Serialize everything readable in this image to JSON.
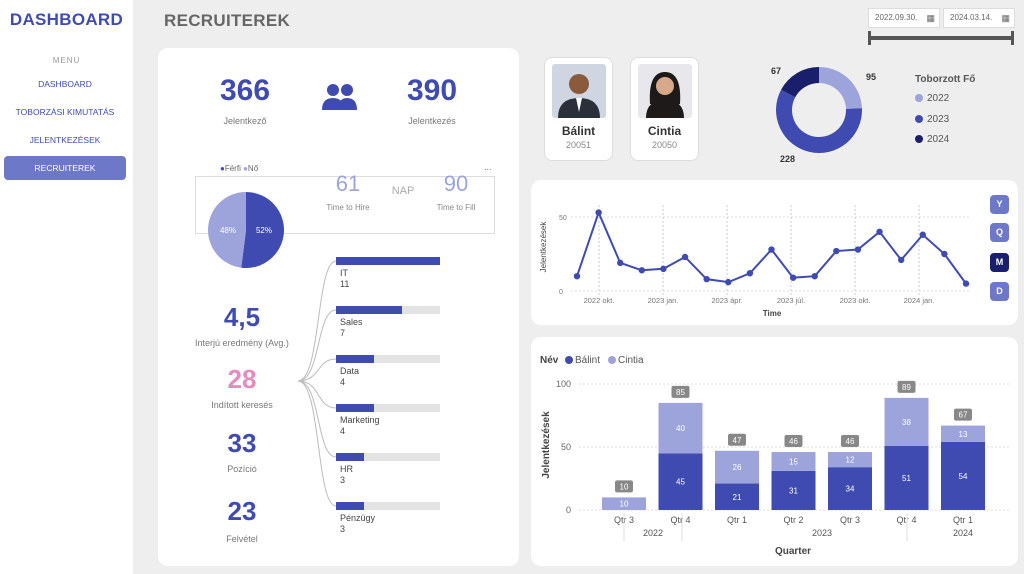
{
  "sidebar": {
    "logo": "DASHBOARD",
    "menu_label": "MENU",
    "items": [
      "DASHBOARD",
      "TOBORZÁSI KIMUTATÁS",
      "JELENTKEZÉSEK",
      "RECRUITEREK"
    ]
  },
  "header": {
    "title": "RECRUITEREK",
    "date_from": "2022.09.30.",
    "date_to": "2024.03.14.",
    "calendar_icon": "calendar-icon"
  },
  "kpis": {
    "applicants": "366",
    "applicants_label": "Jelentkező",
    "applications": "390",
    "applications_label": "Jelentkezés",
    "gender_legend": [
      "Férfi",
      "Nő"
    ],
    "male_pct": "52%",
    "female_pct": "48%",
    "time_to_hire": "61",
    "time_to_hire_label": "Time to Hire",
    "nap": "NAP",
    "time_to_fill": "90",
    "time_to_fill_label": "Time to Fill",
    "ellipsis": "...",
    "interview": "4,5",
    "interview_label": "Interjú eredmény (Avg.)",
    "searches": "28",
    "searches_label": "Indított keresés",
    "positions": "33",
    "positions_label": "Pozíció",
    "hires": "23",
    "hires_label": "Felvétel"
  },
  "departments": [
    {
      "name": "IT",
      "value": "11",
      "fill": 1.0
    },
    {
      "name": "Sales",
      "value": "7",
      "fill": 0.636
    },
    {
      "name": "Data",
      "value": "4",
      "fill": 0.364
    },
    {
      "name": "Marketing",
      "value": "4",
      "fill": 0.364
    },
    {
      "name": "HR",
      "value": "3",
      "fill": 0.273
    },
    {
      "name": "Pénzügy",
      "value": "3",
      "fill": 0.273
    }
  ],
  "recruiters": [
    {
      "name": "Bálint",
      "id": "20051"
    },
    {
      "name": "Cintia",
      "id": "20050"
    }
  ],
  "donut": {
    "legend_title": "Toborzott Fő",
    "years": [
      "2022",
      "2023",
      "2024"
    ],
    "values": [
      95,
      228,
      67
    ],
    "colors": [
      "#9da4dc",
      "#3f4bb0",
      "#1a1f6b"
    ]
  },
  "period_buttons": [
    "Y",
    "Q",
    "M",
    "D"
  ],
  "chart_data": [
    {
      "type": "line",
      "title": "",
      "ylabel": "Jelentkezések",
      "xlabel": "Time",
      "ylim": [
        0,
        60
      ],
      "yticks": [
        "50",
        "0"
      ],
      "xticks": [
        "2022 okt.",
        "2023 jan.",
        "2023 ápr.",
        "2023 júl.",
        "2023 okt.",
        "2024 jan."
      ],
      "values": [
        10,
        53,
        19,
        14,
        15,
        23,
        8,
        6,
        12,
        28,
        9,
        10,
        27,
        28,
        40,
        21,
        38,
        25,
        5
      ]
    },
    {
      "type": "bar",
      "stacked": true,
      "ylabel": "Jelentkezések",
      "xlabel": "Quarter",
      "ylim": [
        0,
        100
      ],
      "legend_title": "Név",
      "yticks": [
        "100",
        "50",
        "0"
      ],
      "categories": [
        "Qtr 3",
        "Qtr 4",
        "Qtr 1",
        "Qtr 2",
        "Qtr 3",
        "Qtr 4",
        "Qtr 1"
      ],
      "years": [
        "2022",
        "2023",
        "2024"
      ],
      "series": [
        {
          "name": "Bálint",
          "values": [
            0,
            45,
            21,
            31,
            34,
            51,
            54
          ]
        },
        {
          "name": "Cintia",
          "values": [
            10,
            40,
            26,
            15,
            12,
            38,
            13
          ]
        }
      ],
      "totals": [
        "10",
        "85",
        "47",
        "46",
        "46",
        "89",
        "67"
      ]
    }
  ]
}
